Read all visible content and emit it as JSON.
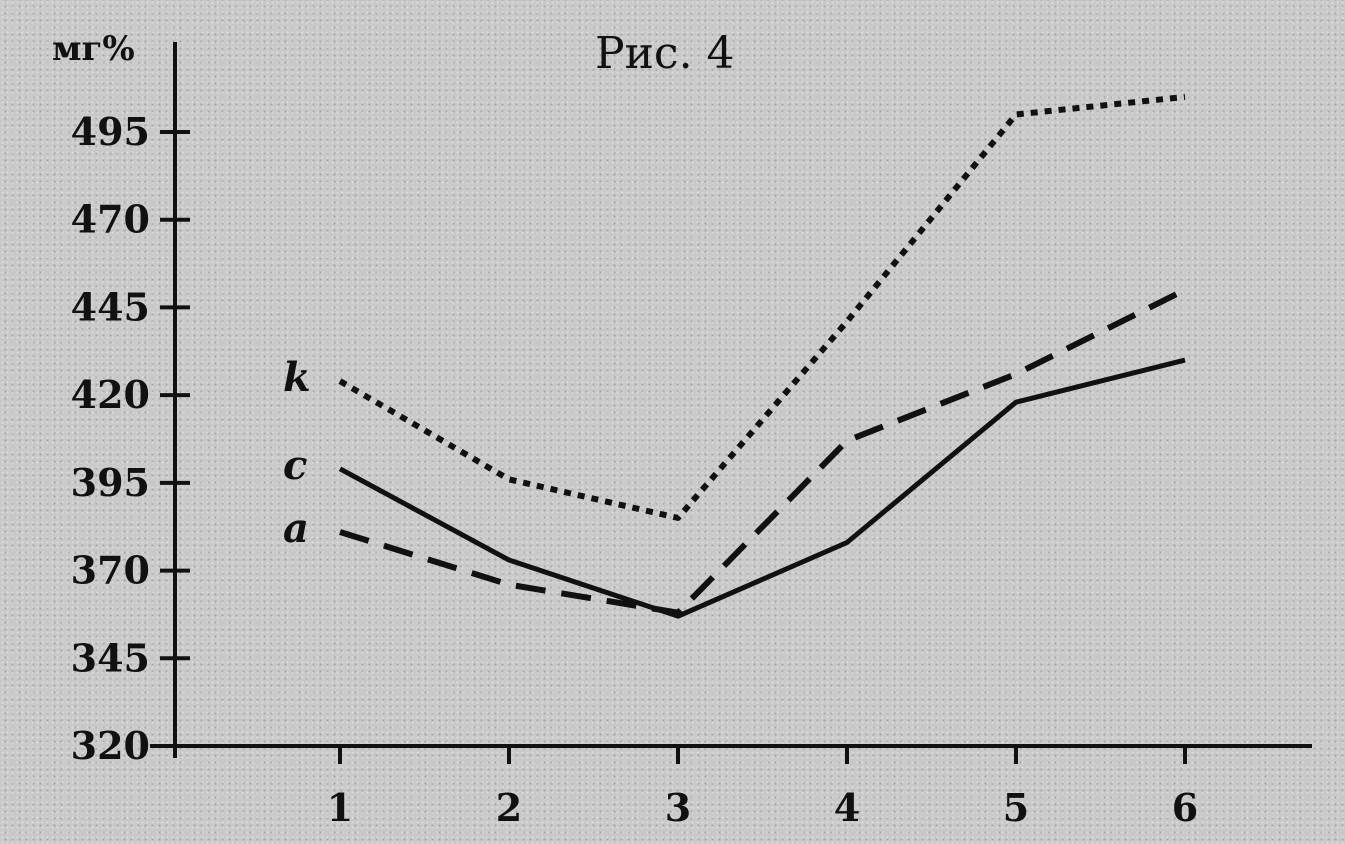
{
  "chart_data": {
    "type": "line",
    "title": "Рис. 4",
    "ylabel": "мг%",
    "xlabel": "",
    "x": [
      1,
      2,
      3,
      4,
      5,
      6
    ],
    "x_tick_labels": [
      "1",
      "2",
      "3",
      "4",
      "5",
      "6"
    ],
    "ylim": [
      320,
      515
    ],
    "y_ticks": [
      320,
      345,
      370,
      395,
      420,
      445,
      470,
      495
    ],
    "y_tick_labels": [
      "320",
      "345",
      "370",
      "395",
      "420",
      "445",
      "470",
      "495"
    ],
    "grid": false,
    "legend": "inline labels at left of lines",
    "series": [
      {
        "name": "k",
        "style": "dotted",
        "color": "#111111",
        "values": [
          424,
          396,
          385,
          441,
          500,
          505
        ]
      },
      {
        "name": "c",
        "style": "solid",
        "color": "#111111",
        "values": [
          399,
          373,
          357,
          378,
          418,
          430
        ]
      },
      {
        "name": "a",
        "style": "dashed",
        "color": "#111111",
        "values": [
          381,
          366,
          358,
          407,
          426,
          450
        ]
      }
    ]
  }
}
